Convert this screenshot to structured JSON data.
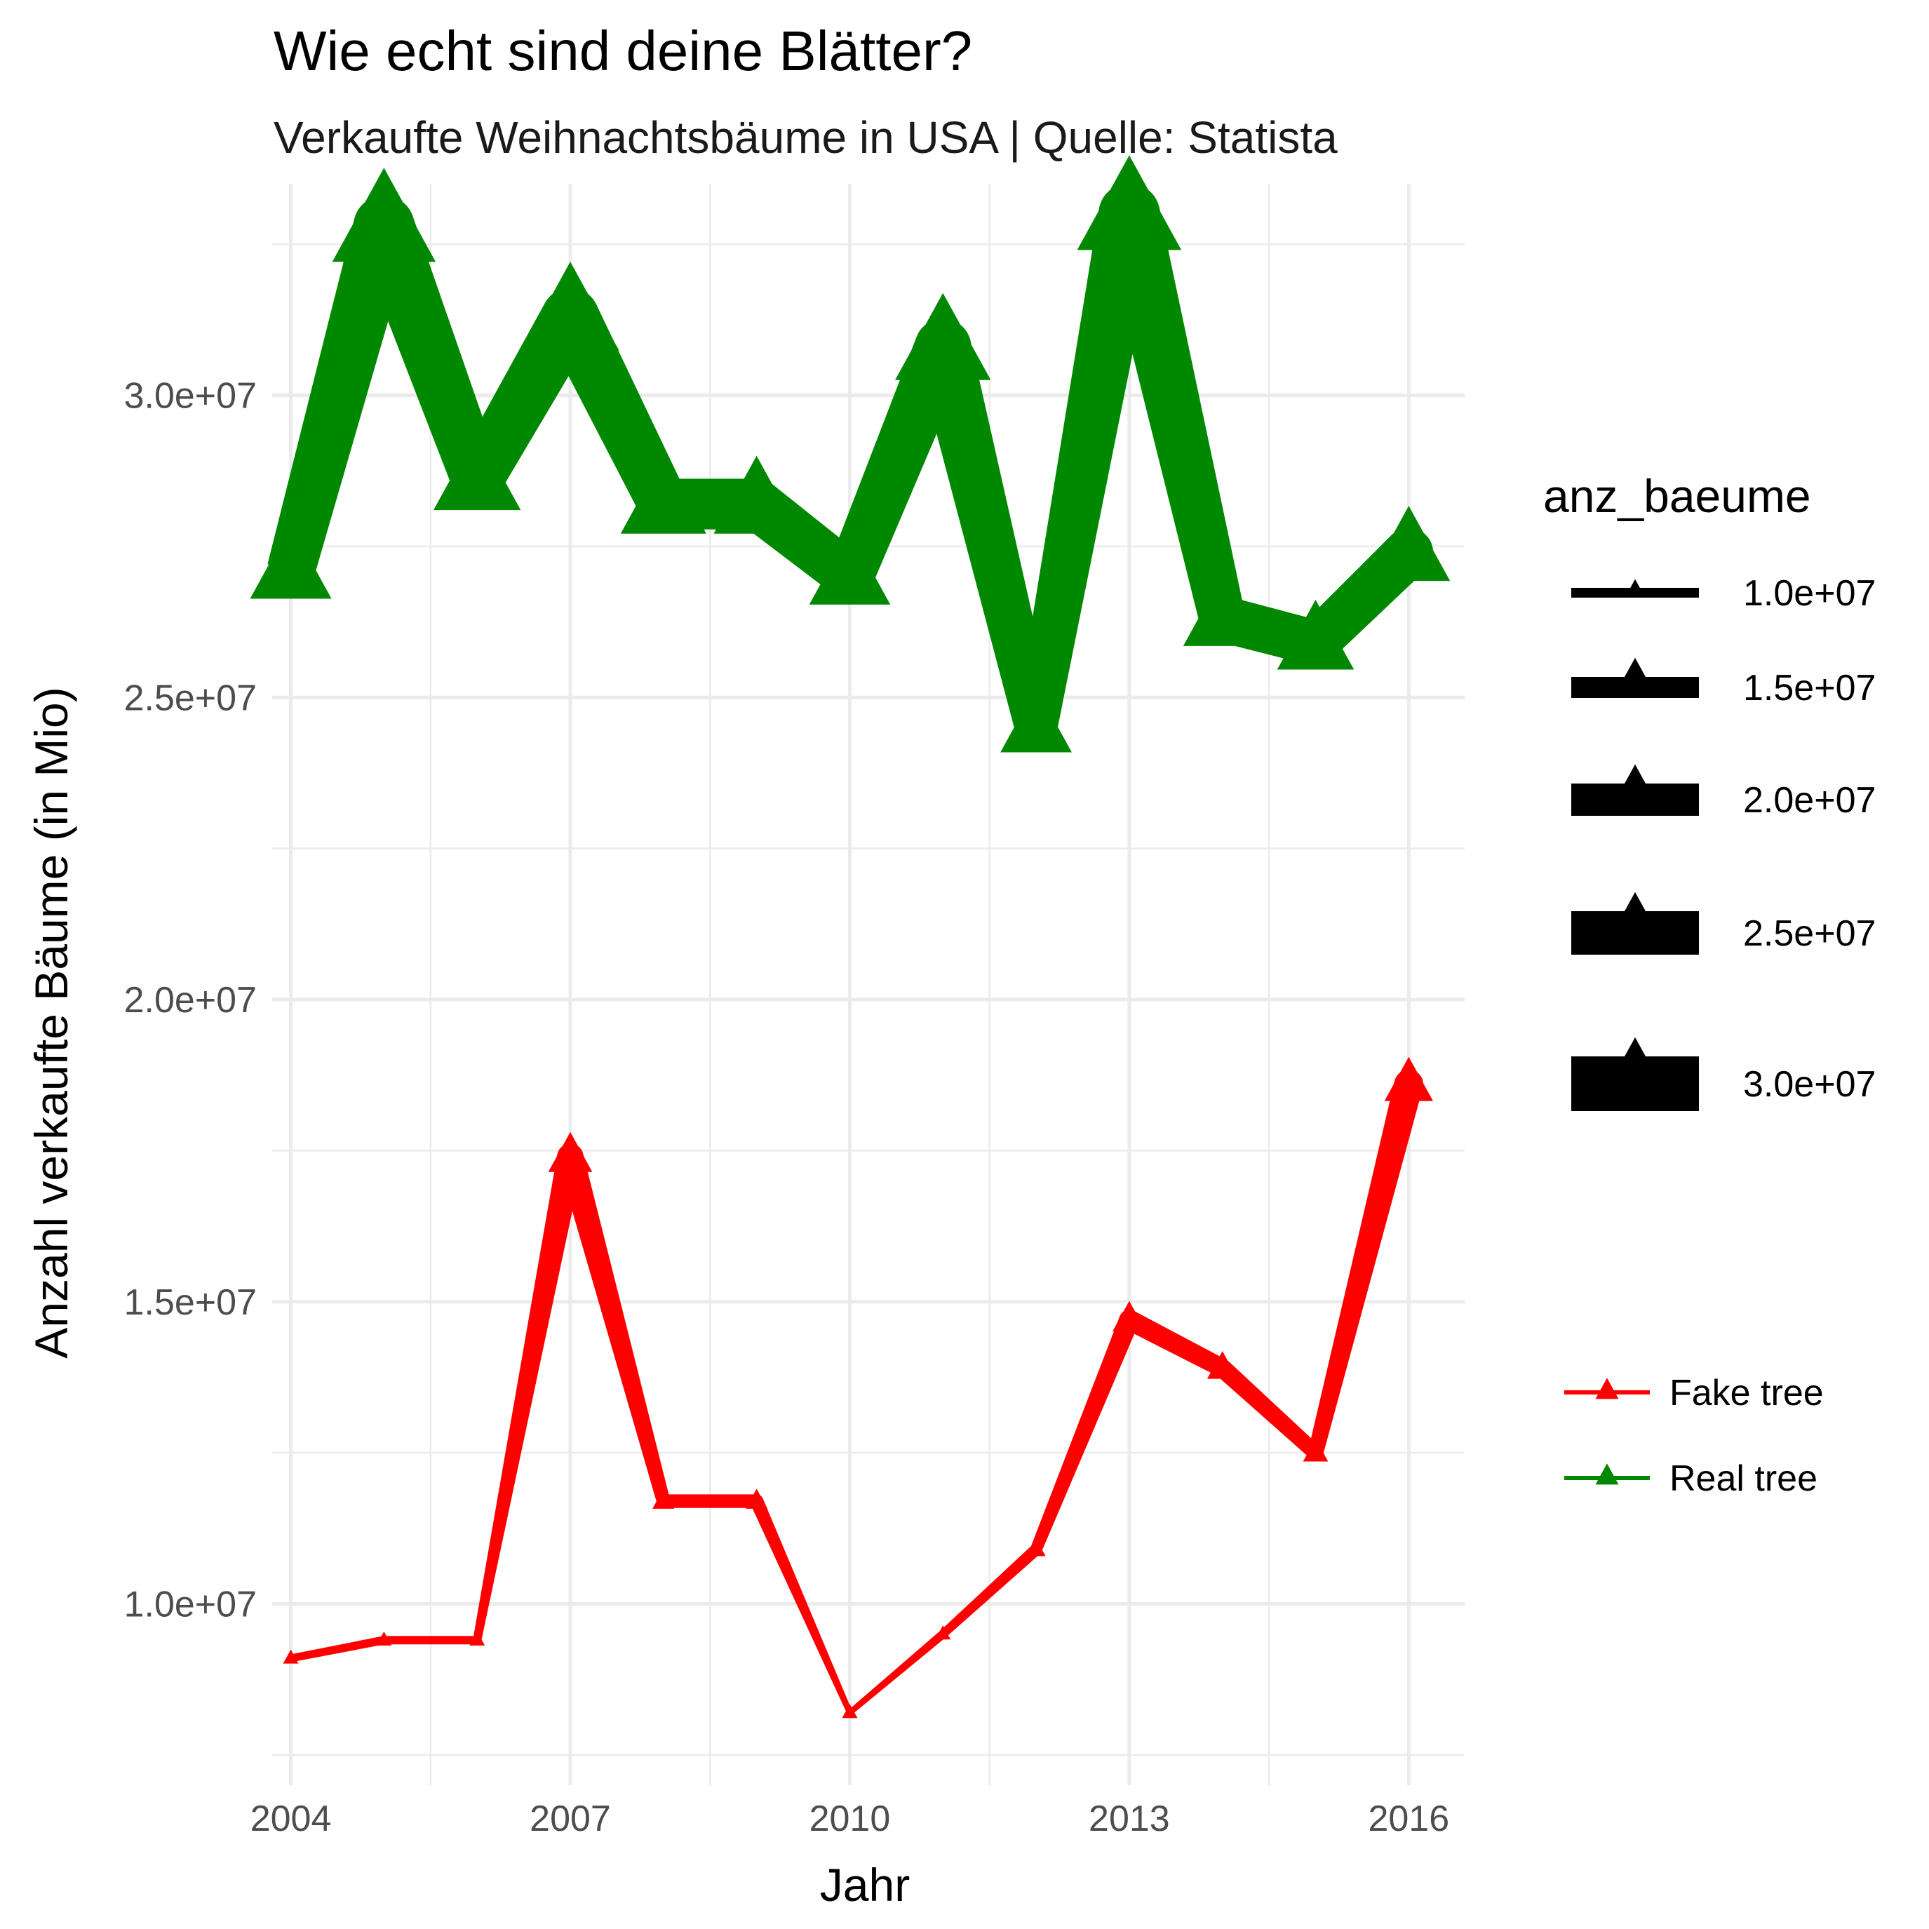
{
  "chart_data": {
    "type": "line",
    "title": "Wie echt sind deine Blätter?",
    "subtitle": "Verkaufte Weihnachtsbäume in USA | Quelle: Statista",
    "xlabel": "Jahr",
    "ylabel": "Anzahl verkaufte Bäume (in Mio)",
    "x": [
      2004,
      2005,
      2006,
      2007,
      2008,
      2009,
      2010,
      2011,
      2012,
      2013,
      2014,
      2015,
      2016
    ],
    "xlim": [
      2003.8,
      2016.6
    ],
    "ylim": [
      7000000,
      33500000
    ],
    "x_ticks": [
      2004,
      2007,
      2010,
      2013,
      2016
    ],
    "x_tick_labels": [
      "2004",
      "2007",
      "2010",
      "2013",
      "2016"
    ],
    "y_ticks": [
      10000000,
      15000000,
      20000000,
      25000000,
      30000000
    ],
    "y_tick_labels": [
      "1.0e+07",
      "1.5e+07",
      "2.0e+07",
      "2.5e+07",
      "3.0e+07"
    ],
    "grid": true,
    "series": [
      {
        "name": "Fake tree",
        "color": "#ff0000",
        "values": [
          9100000,
          9400000,
          9400000,
          17400000,
          11700000,
          11700000,
          8200000,
          9500000,
          10900000,
          14700000,
          13900000,
          12500000,
          18600000
        ]
      },
      {
        "name": "Real tree",
        "color": "#008800",
        "values": [
          27100000,
          32800000,
          28600000,
          31300000,
          28200000,
          28200000,
          27000000,
          30800000,
          24500000,
          33000000,
          26300000,
          25900000,
          27400000
        ]
      }
    ],
    "size_legend": {
      "title": "anz_baeume",
      "values": [
        10000000,
        15000000,
        20000000,
        25000000,
        30000000
      ],
      "labels": [
        "1.0e+07",
        "1.5e+07",
        "2.0e+07",
        "2.5e+07",
        "3.0e+07"
      ]
    },
    "color_legend": {
      "entries": [
        "Fake tree",
        "Real tree"
      ],
      "placement": "right"
    }
  }
}
